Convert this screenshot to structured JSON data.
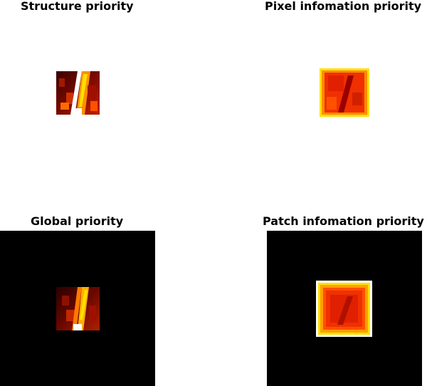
{
  "figure": {
    "panels": [
      {
        "title": "Structure priority",
        "background": "white",
        "colormap": "hot"
      },
      {
        "title": "Pixel infomation priority",
        "background": "white",
        "colormap": "hot"
      },
      {
        "title": "Global priority",
        "background": "black",
        "colormap": "hot"
      },
      {
        "title": "Patch infomation priority",
        "background": "black",
        "colormap": "hot"
      }
    ]
  },
  "colors": {
    "black": "#000000",
    "dark_red": "#5a0000",
    "red": "#e01000",
    "orange": "#ff6a00",
    "yellow": "#ffe000",
    "white": "#ffffff"
  }
}
